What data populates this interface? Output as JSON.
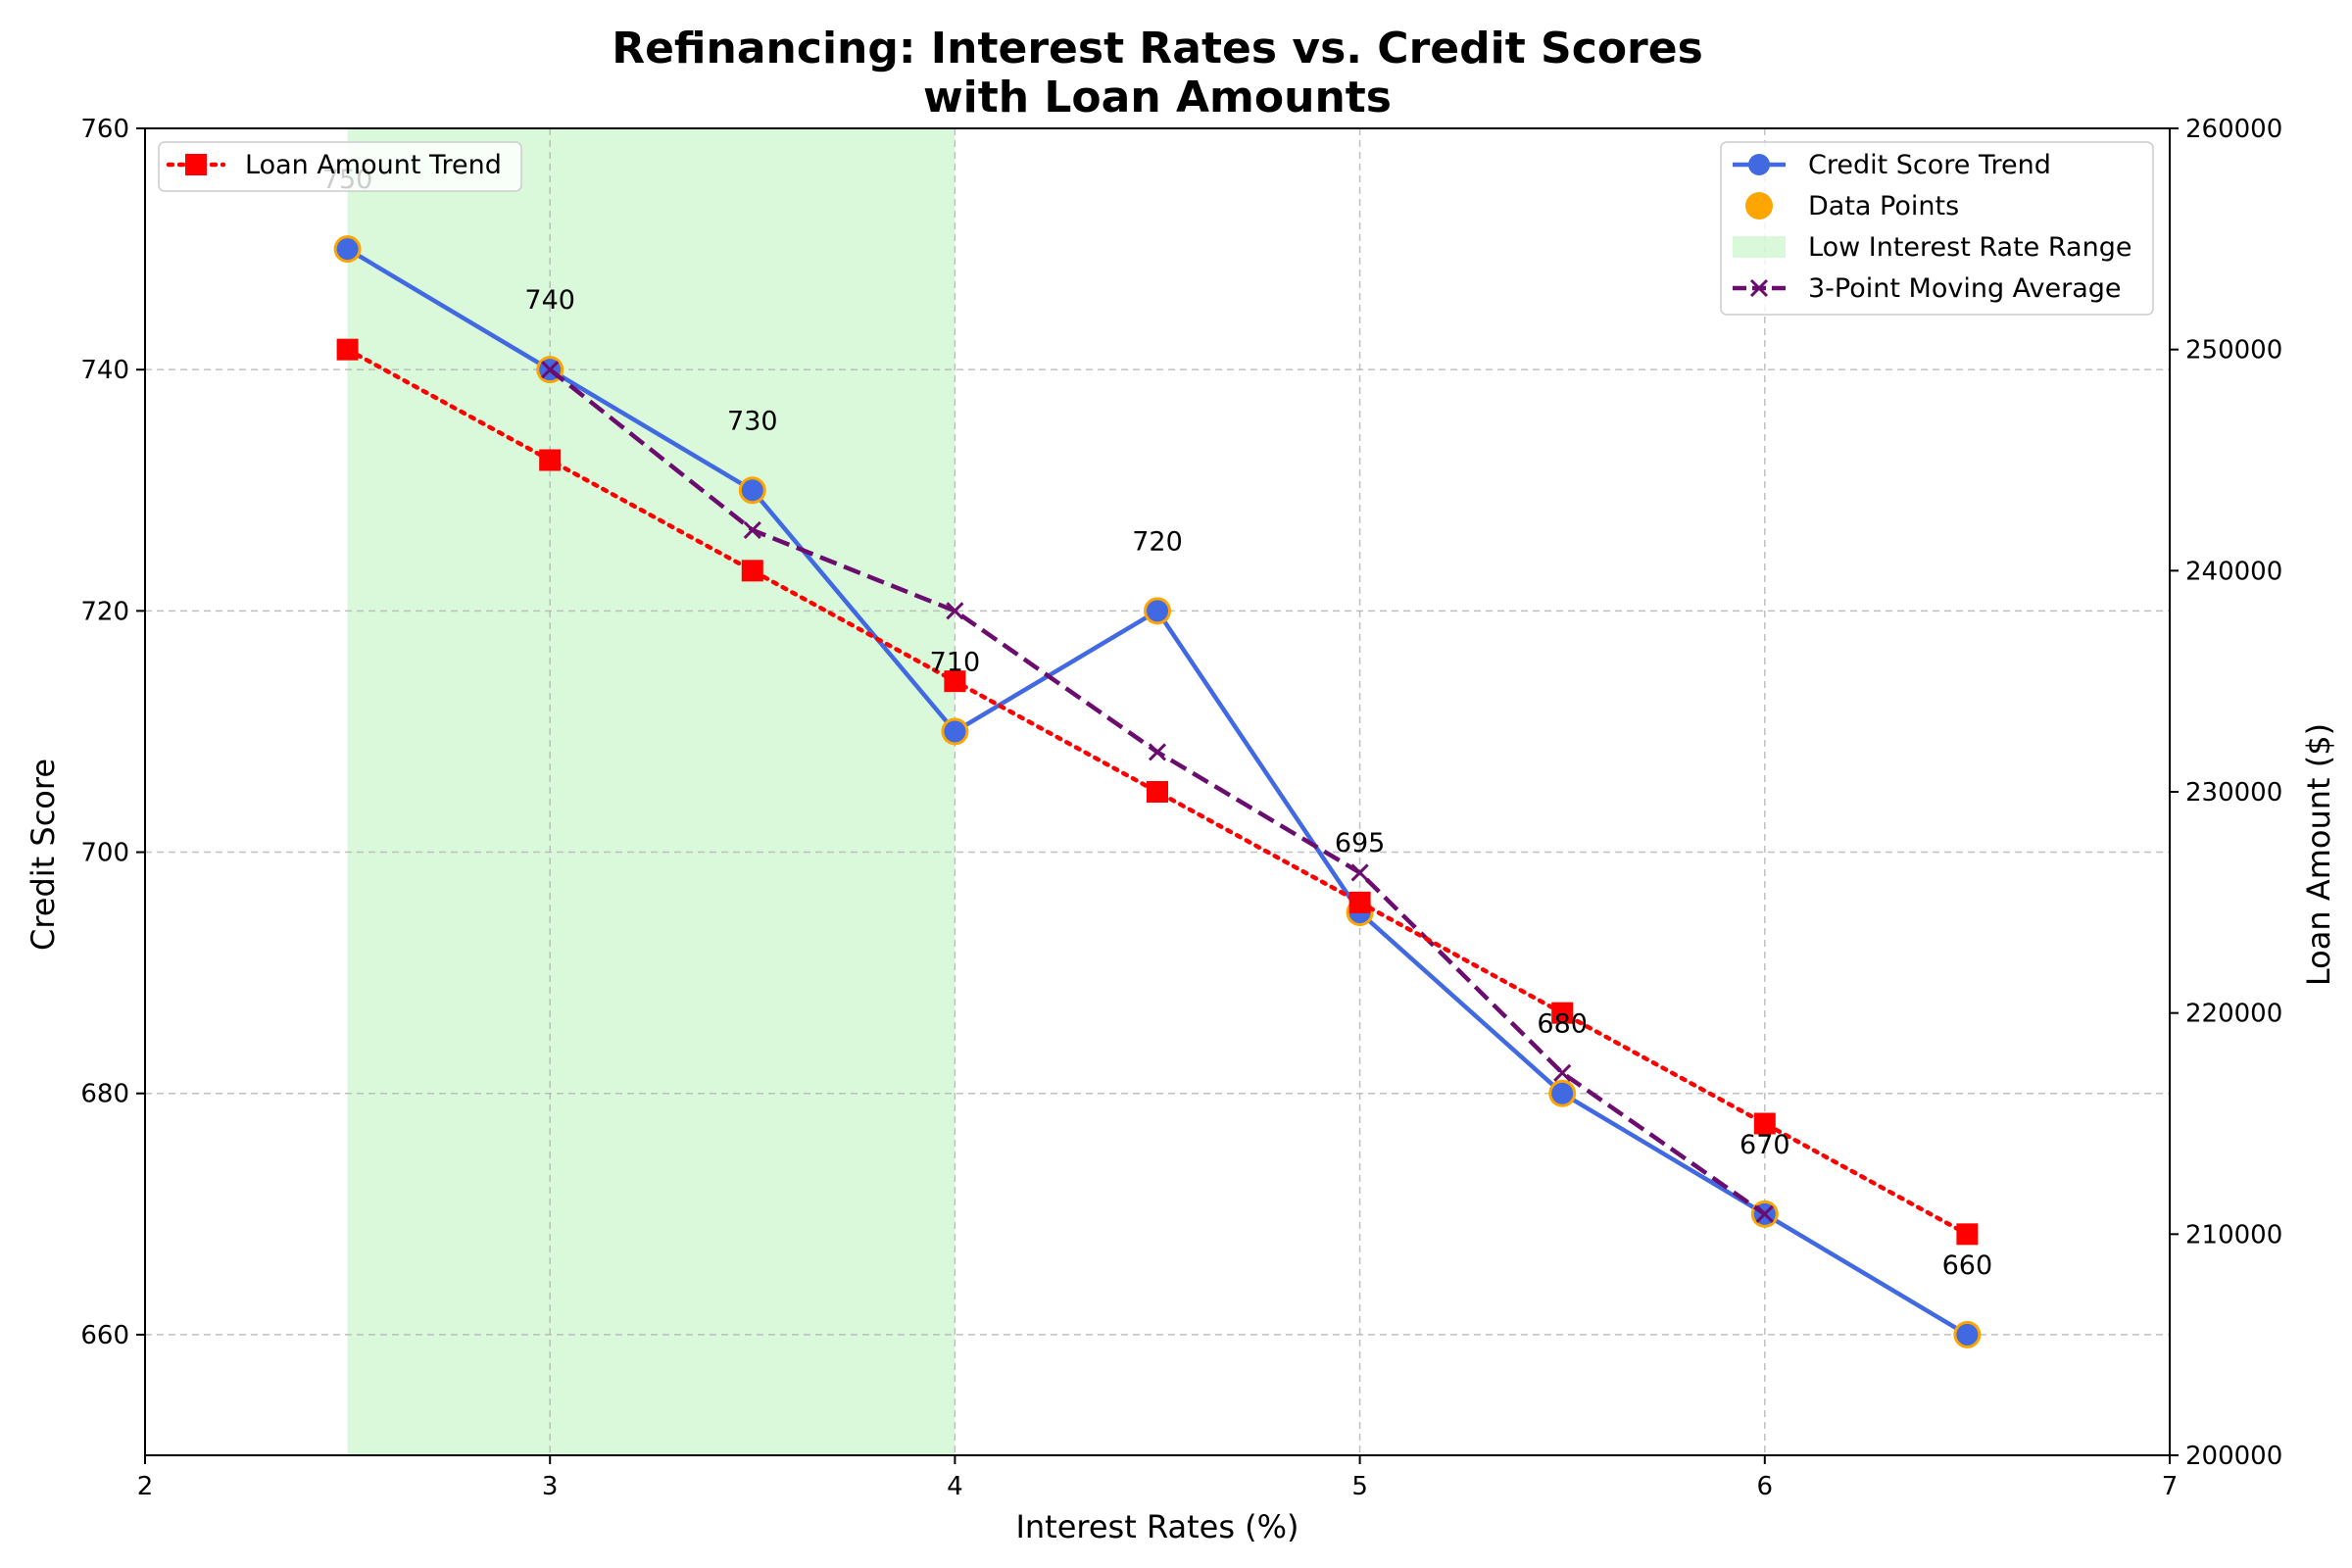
{
  "chart_data": {
    "type": "line",
    "title_line1": "Refinancing: Interest Rates vs. Credit Scores",
    "title_line2": "with Loan Amounts",
    "xlabel": "Interest Rates (%)",
    "ylabel": "Credit Score",
    "y2label": "Loan Amount ($)",
    "xlim": [
      2,
      7
    ],
    "ylim": [
      650,
      760
    ],
    "y2lim": [
      200000,
      260000
    ],
    "xticks": [
      "2",
      "3",
      "4",
      "5",
      "6",
      "7"
    ],
    "yticks": [
      "660",
      "680",
      "700",
      "720",
      "740",
      "760"
    ],
    "y2ticks": [
      "200000",
      "210000",
      "220000",
      "230000",
      "240000",
      "250000",
      "260000"
    ],
    "grid": true,
    "x": [
      2.5,
      3.0,
      3.5,
      4.0,
      4.5,
      5.0,
      5.5,
      6.0,
      6.5
    ],
    "shaded_range": {
      "name": "Low Interest Rate Range",
      "x_start": 2.5,
      "x_end": 4.0,
      "color": "#90ee90"
    },
    "series": [
      {
        "name": "Credit Score Trend",
        "axis": "left",
        "style": "solid line with circle markers",
        "color": "#4169e1",
        "values": [
          750,
          740,
          730,
          710,
          720,
          695,
          680,
          670,
          660
        ]
      },
      {
        "name": "Data Points",
        "axis": "left",
        "style": "scatter",
        "color": "#ffa500",
        "values": [
          750,
          740,
          730,
          710,
          720,
          695,
          680,
          670,
          660
        ]
      },
      {
        "name": "3-Point Moving Average",
        "axis": "left",
        "style": "dashed line with x markers",
        "color": "#6a0d6f",
        "x": [
          3.0,
          3.5,
          4.0,
          4.5,
          5.0,
          5.5,
          6.0
        ],
        "values": [
          740,
          726.7,
          720,
          708.3,
          698.3,
          681.7,
          670
        ]
      },
      {
        "name": "Loan Amount Trend",
        "axis": "right",
        "style": "dotted line with square markers",
        "color": "#ff0000",
        "values": [
          250000,
          245000,
          240000,
          235000,
          230000,
          225000,
          220000,
          215000,
          210000
        ]
      }
    ],
    "point_labels": [
      "750",
      "740",
      "730",
      "710",
      "720",
      "695",
      "680",
      "670",
      "660"
    ],
    "legend_left": {
      "placement": "upper-left",
      "entries": [
        "Loan Amount Trend"
      ]
    },
    "legend_right": {
      "placement": "upper-right",
      "entries": [
        "Credit Score Trend",
        "Data Points",
        "Low Interest Rate Range",
        "3-Point Moving Average"
      ]
    }
  }
}
